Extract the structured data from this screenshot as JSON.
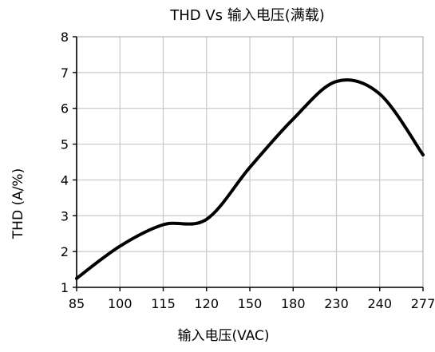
{
  "chart_data": {
    "type": "line",
    "title": "THD Vs 输入电压(满载)",
    "xlabel": "输入电压(VAC)",
    "ylabel": "THD (A/%)",
    "x": [
      "85",
      "100",
      "115",
      "120",
      "150",
      "180",
      "230",
      "240",
      "277"
    ],
    "ylim": [
      1,
      8
    ],
    "yticks": [
      1,
      2,
      3,
      4,
      5,
      6,
      7,
      8
    ],
    "grid": true,
    "series": [
      {
        "values": [
          1.25,
          2.15,
          2.75,
          2.9,
          4.35,
          5.7,
          6.75,
          6.4,
          4.7
        ],
        "color": "#000000"
      }
    ]
  }
}
